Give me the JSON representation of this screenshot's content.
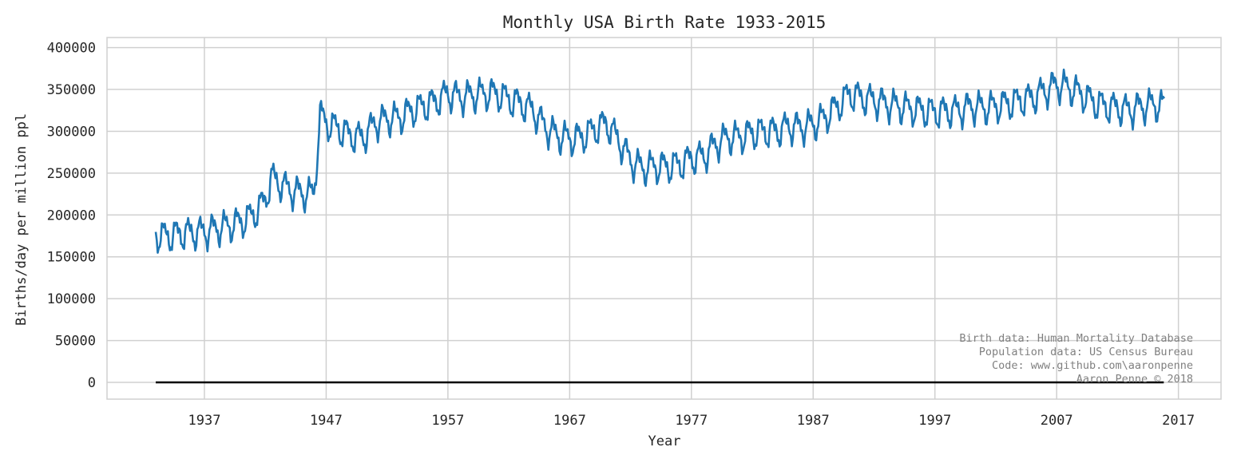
{
  "chart_data": {
    "type": "line",
    "title": "Monthly USA Birth Rate 1933-2015",
    "xlabel": "Year",
    "ylabel": "Births/day per million ppl",
    "xlim": [
      1929,
      2020.5
    ],
    "ylim": [
      -20000,
      412000
    ],
    "xticks": [
      1937,
      1947,
      1957,
      1967,
      1977,
      1987,
      1997,
      2007,
      2017
    ],
    "xtick_labels": [
      "1937",
      "1947",
      "1957",
      "1967",
      "1977",
      "1987",
      "1997",
      "2007",
      "2017"
    ],
    "yticks": [
      0,
      50000,
      100000,
      150000,
      200000,
      250000,
      300000,
      350000,
      400000
    ],
    "ytick_labels": [
      "0",
      "50000",
      "100000",
      "150000",
      "200000",
      "250000",
      "300000",
      "350000",
      "400000"
    ],
    "grid": true,
    "series": [
      {
        "color": "#1f77b4",
        "x": [
          1933.0,
          1934.0,
          1935.0,
          1936.0,
          1937.0,
          1938.0,
          1939.0,
          1940.0,
          1941.0,
          1942.0,
          1942.5,
          1943.0,
          1944.0,
          1945.0,
          1946.0,
          1946.5,
          1947.0,
          1948.0,
          1949.0,
          1950.0,
          1951.0,
          1952.0,
          1953.0,
          1954.0,
          1955.0,
          1956.0,
          1957.0,
          1958.0,
          1959.0,
          1960.0,
          1961.0,
          1962.0,
          1963.0,
          1964.0,
          1965.0,
          1966.0,
          1967.0,
          1968.0,
          1969.0,
          1970.0,
          1971.0,
          1972.0,
          1973.0,
          1974.0,
          1975.0,
          1976.0,
          1977.0,
          1978.0,
          1979.0,
          1980.0,
          1981.0,
          1982.0,
          1983.0,
          1984.0,
          1985.0,
          1986.0,
          1987.0,
          1988.0,
          1989.0,
          1990.0,
          1991.0,
          1992.0,
          1993.0,
          1994.0,
          1995.0,
          1996.0,
          1997.0,
          1998.0,
          1999.0,
          2000.0,
          2001.0,
          2002.0,
          2003.0,
          2004.0,
          2005.0,
          2006.0,
          2007.0,
          2008.0,
          2009.0,
          2010.0,
          2011.0,
          2012.0,
          2013.0,
          2014.0,
          2015.0,
          2015.8
        ],
        "y": [
          176000,
          175000,
          178000,
          179000,
          180000,
          184000,
          187000,
          192000,
          200000,
          218000,
          245000,
          240000,
          230000,
          226000,
          225000,
          320000,
          310000,
          303000,
          295000,
          292000,
          310000,
          315000,
          316000,
          325000,
          330000,
          336000,
          345000,
          341000,
          343000,
          345000,
          345000,
          338000,
          333000,
          325000,
          305000,
          295000,
          291000,
          293000,
          302000,
          310000,
          290000,
          265000,
          256000,
          258000,
          258000,
          260000,
          268000,
          270000,
          285000,
          293000,
          293000,
          298000,
          300000,
          300000,
          306000,
          305000,
          308000,
          317000,
          330000,
          345000,
          340000,
          337000,
          333000,
          330000,
          327000,
          325000,
          323000,
          324000,
          325000,
          330000,
          328000,
          330000,
          333000,
          337000,
          340000,
          348000,
          356000,
          352000,
          345000,
          335000,
          330000,
          328000,
          325000,
          330000,
          332000,
          330000
        ],
        "seasonal_amplitude": 15000
      },
      {
        "color": "#000000",
        "x": [
          1933.0,
          2015.8
        ],
        "y": [
          0,
          0
        ]
      }
    ],
    "annotation": {
      "lines": [
        "Birth data: Human Mortality Database",
        "Population data: US Census Bureau",
        "Code: www.github.com\\aaronpenne",
        "Aaron Penne © 2018"
      ],
      "placement": "bottom-right",
      "color": "#808080"
    }
  }
}
